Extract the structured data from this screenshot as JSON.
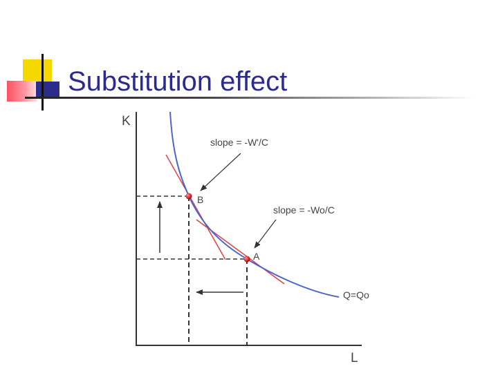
{
  "slide": {
    "title": "Substitution effect"
  },
  "diagram": {
    "y_axis_label": "K",
    "x_axis_label": "L",
    "slope_label_b": "slope = -W'/C",
    "slope_label_a": "slope = -Wo/C",
    "point_b_label": "B",
    "point_a_label": "A",
    "isoquant_label": "Q=Qo",
    "colors": {
      "isoquant": "#4a63d0",
      "tangent": "#e04040",
      "point": "#cc1010",
      "axes": "#333333",
      "title": "#2b2b8f"
    }
  }
}
